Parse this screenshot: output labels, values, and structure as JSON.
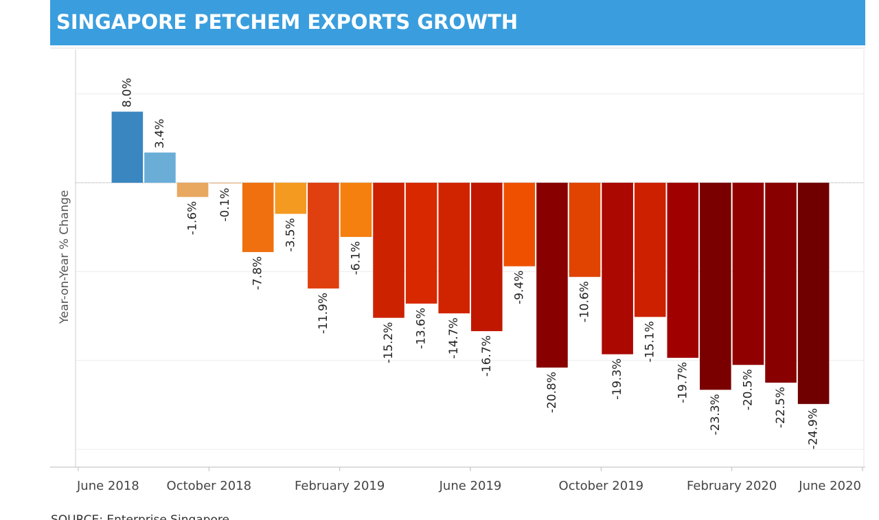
{
  "chart_data": {
    "type": "bar",
    "title": "SINGAPORE  PETCHEM EXPORTS GROWTH",
    "y_label": "Year-on-Year % Change",
    "source": "SOURCE: Enterprise Singapore",
    "x": [
      "2018-07",
      "2018-08",
      "2018-09",
      "2018-10",
      "2018-11",
      "2018-12",
      "2019-01",
      "2019-02",
      "2019-03",
      "2019-04",
      "2019-05",
      "2019-06",
      "2019-07",
      "2019-08",
      "2019-09",
      "2019-10",
      "2019-11",
      "2019-12",
      "2020-01",
      "2020-02",
      "2020-03",
      "2020-04"
    ],
    "values": [
      8.0,
      3.4,
      -1.6,
      -0.1,
      -7.8,
      -3.5,
      -11.9,
      -6.1,
      -15.2,
      -13.6,
      -14.7,
      -16.7,
      -9.4,
      -20.8,
      -10.6,
      -19.3,
      -15.1,
      -19.7,
      -23.3,
      -20.5,
      -22.5,
      -24.9
    ],
    "value_labels": [
      "8.0%",
      "3.4%",
      "-1.6%",
      "-0.1%",
      "-7.8%",
      "-3.5%",
      "-11.9%",
      "-6.1%",
      "-15.2%",
      "-13.6%",
      "-14.7%",
      "-16.7%",
      "-9.4%",
      "-20.8%",
      "-10.6%",
      "-19.3%",
      "-15.1%",
      "-19.7%",
      "-23.3%",
      "-20.5%",
      "-22.5%",
      "-24.9%"
    ],
    "colors": [
      "#3a86c0",
      "#6aaed8",
      "#e8a860",
      "#f0c090",
      "#f07010",
      "#f59a20",
      "#e04010",
      "#f58010",
      "#cc2200",
      "#d82800",
      "#d02400",
      "#c01800",
      "#ee5000",
      "#880000",
      "#e04400",
      "#aa0800",
      "#cc2000",
      "#a00000",
      "#7a0000",
      "#900000",
      "#880000",
      "#700000"
    ],
    "xlim": [
      "2018-06",
      "2020-06"
    ],
    "xticks": [
      {
        "value": "2018-06",
        "label": "June 2018"
      },
      {
        "value": "2018-10",
        "label": "October 2018"
      },
      {
        "value": "2019-02",
        "label": "February 2019"
      },
      {
        "value": "2019-06",
        "label": "June 2019"
      },
      {
        "value": "2019-10",
        "label": "October 2019"
      },
      {
        "value": "2020-02",
        "label": "February 2020"
      },
      {
        "value": "2020-06",
        "label": "June 2020"
      }
    ],
    "ylim": [
      -32,
      15
    ],
    "yticks": [
      10,
      0,
      -10,
      -20,
      -30
    ],
    "grid": true
  }
}
